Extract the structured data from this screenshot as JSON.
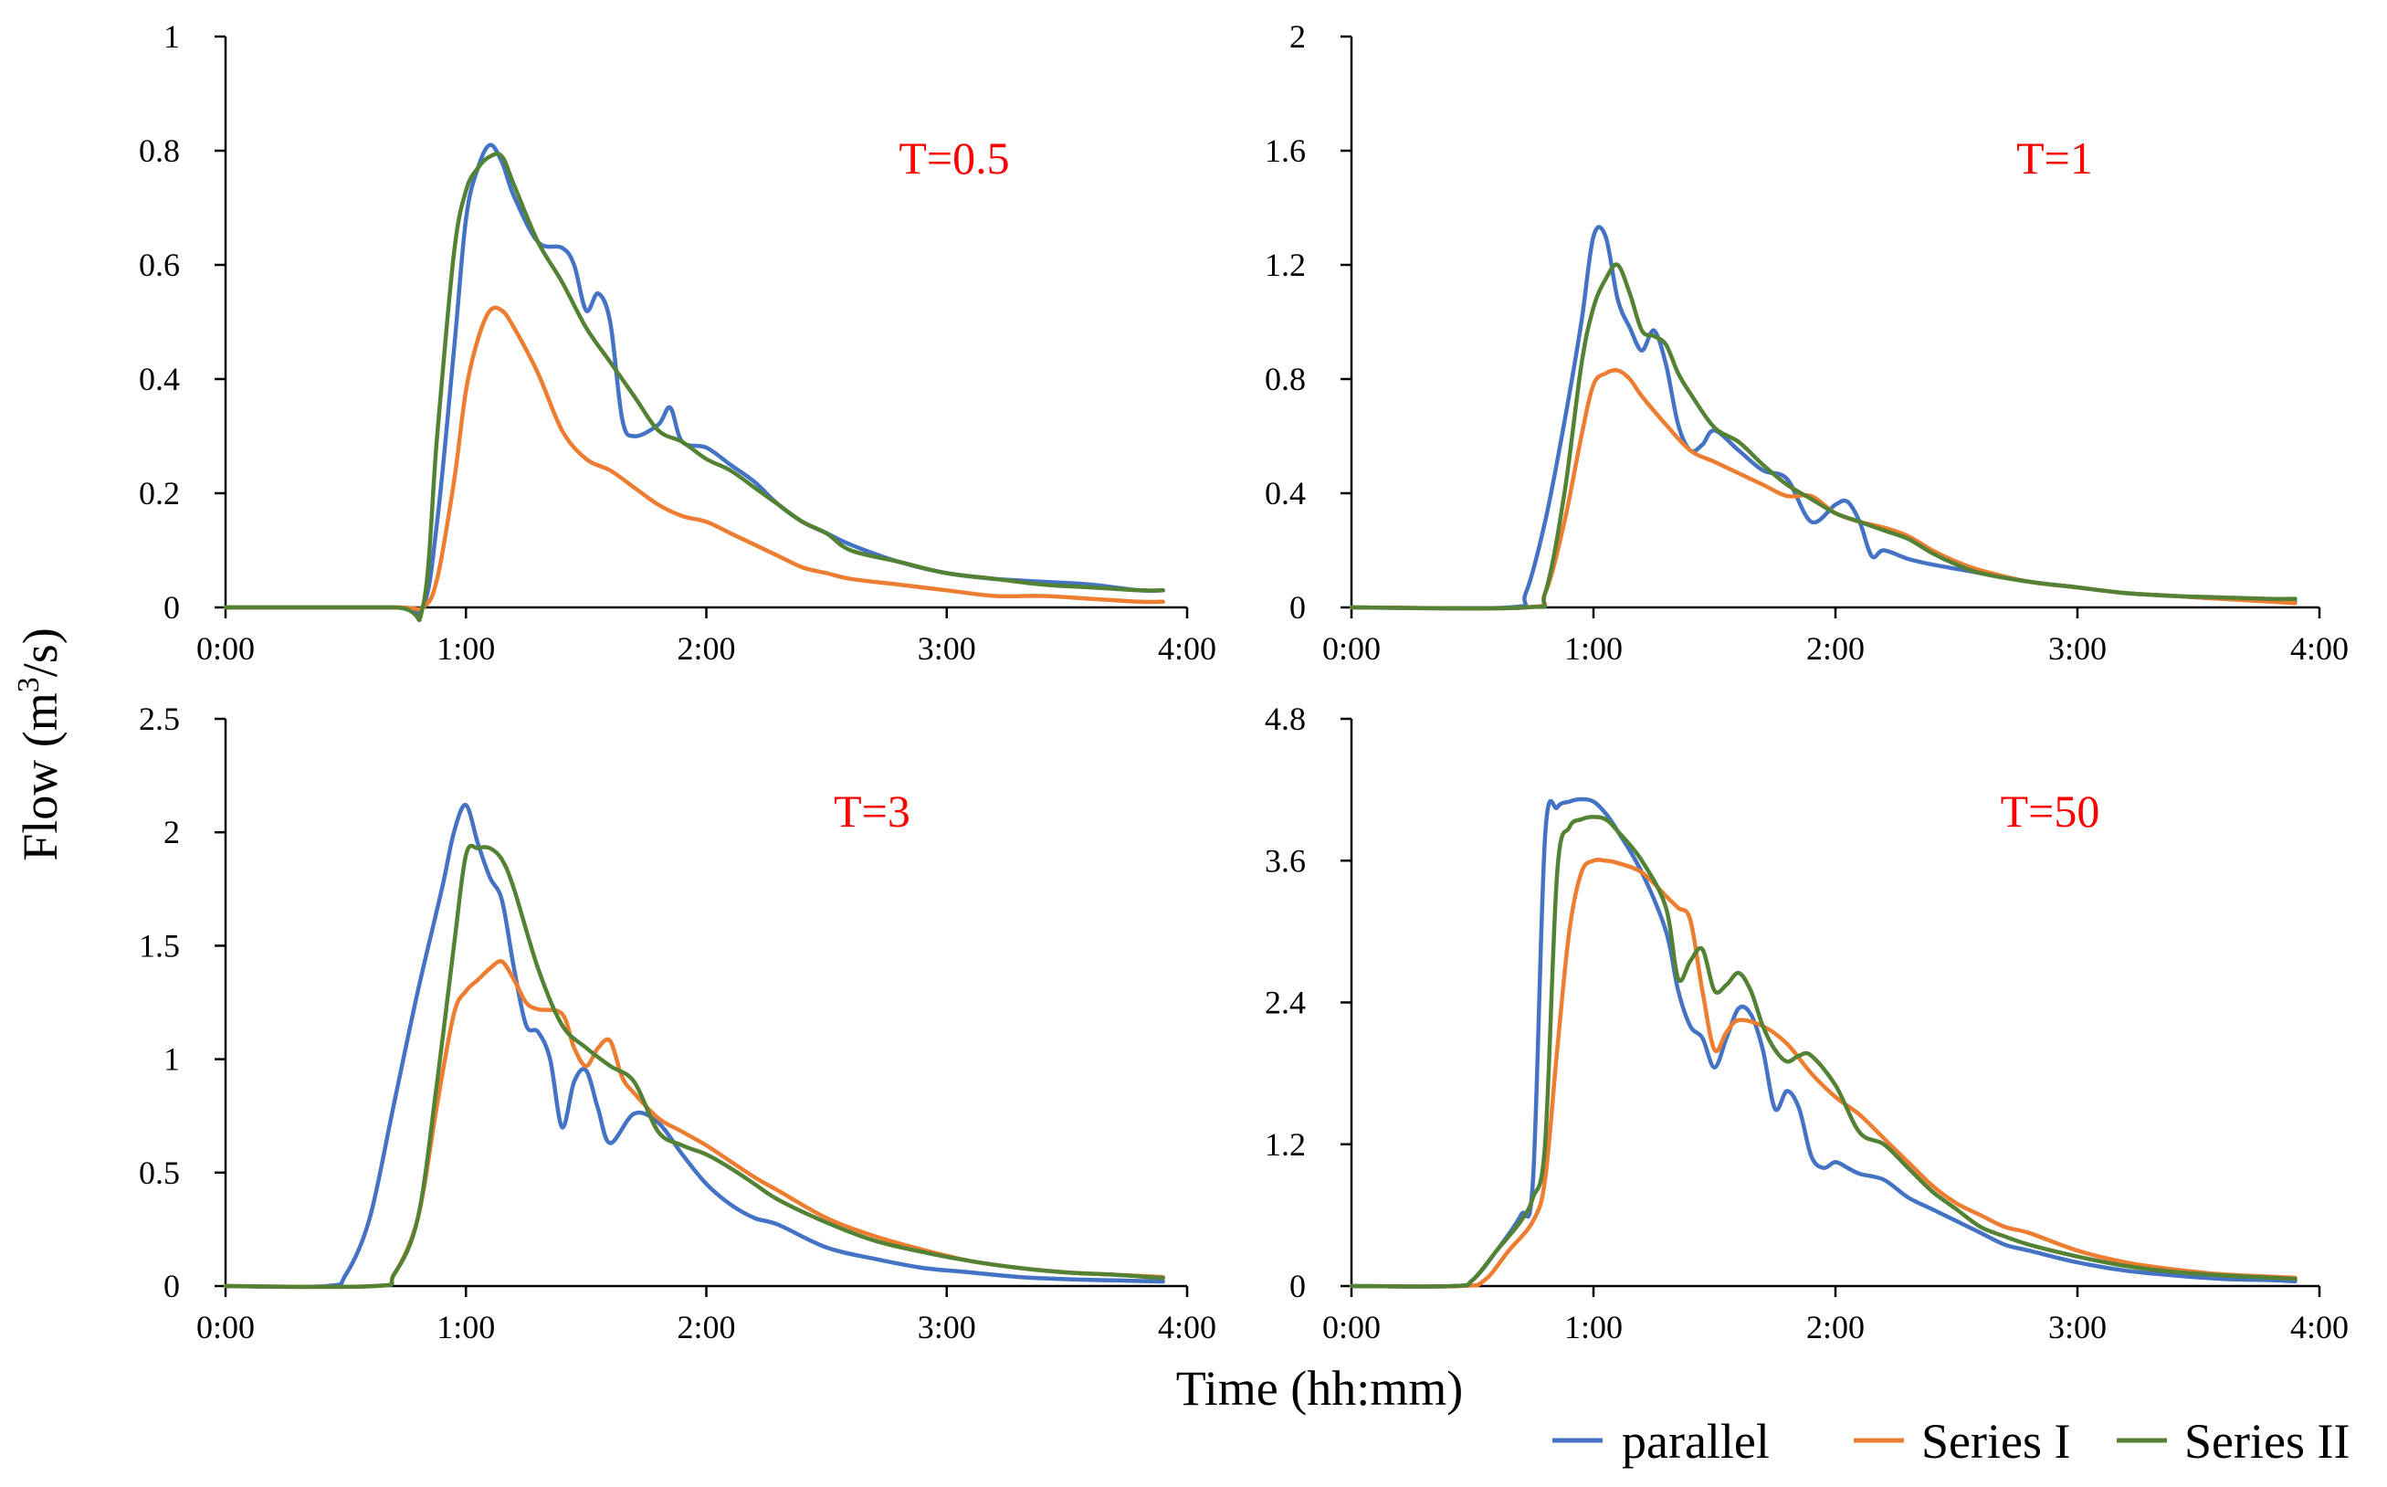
{
  "figure": {
    "ylabel_main": "Flow (m",
    "ylabel_sup": "3",
    "ylabel_tail": "/s)",
    "xlabel": "Time (hh:mm)"
  },
  "legend": [
    {
      "name": "parallel",
      "color": "#4472C4"
    },
    {
      "name": "Series I",
      "color": "#ED7D31"
    },
    {
      "name": "Series II",
      "color": "#548235"
    }
  ],
  "label_color": "#FF0000",
  "chart_data": [
    {
      "type": "line",
      "panel_label": "T=0.5",
      "x_ticks": [
        "0:00",
        "1:00",
        "2:00",
        "3:00",
        "4:00"
      ],
      "xlim": [
        0,
        4
      ],
      "ylim": [
        0,
        1
      ],
      "y_ticks": [
        "0",
        "0.2",
        "0.4",
        "0.6",
        "0.8",
        "1"
      ],
      "series": [
        {
          "name": "parallel",
          "x": [
            0,
            0.7,
            0.82,
            0.88,
            0.95,
            1.0,
            1.05,
            1.1,
            1.15,
            1.2,
            1.3,
            1.4,
            1.45,
            1.5,
            1.55,
            1.6,
            1.65,
            1.7,
            1.8,
            1.85,
            1.9,
            2.0,
            2.1,
            2.2,
            2.3,
            2.4,
            2.5,
            2.6,
            2.8,
            3.0,
            3.2,
            3.4,
            3.6,
            3.8,
            3.9
          ],
          "y": [
            0,
            0,
            0.0,
            0.15,
            0.45,
            0.68,
            0.77,
            0.81,
            0.78,
            0.72,
            0.64,
            0.63,
            0.6,
            0.52,
            0.55,
            0.5,
            0.33,
            0.3,
            0.32,
            0.35,
            0.29,
            0.28,
            0.25,
            0.22,
            0.18,
            0.15,
            0.13,
            0.11,
            0.08,
            0.06,
            0.05,
            0.045,
            0.04,
            0.03,
            0.03
          ]
        },
        {
          "name": "Series I",
          "x": [
            0,
            0.7,
            0.82,
            0.88,
            0.95,
            1.0,
            1.05,
            1.1,
            1.15,
            1.2,
            1.3,
            1.4,
            1.5,
            1.6,
            1.7,
            1.8,
            1.9,
            2.0,
            2.1,
            2.2,
            2.3,
            2.4,
            2.5,
            2.6,
            2.8,
            3.0,
            3.2,
            3.4,
            3.6,
            3.8,
            3.9
          ],
          "y": [
            0,
            0,
            0.0,
            0.05,
            0.22,
            0.38,
            0.47,
            0.52,
            0.52,
            0.49,
            0.41,
            0.31,
            0.26,
            0.24,
            0.21,
            0.18,
            0.16,
            0.15,
            0.13,
            0.11,
            0.09,
            0.07,
            0.06,
            0.05,
            0.04,
            0.03,
            0.02,
            0.02,
            0.015,
            0.01,
            0.01
          ]
        },
        {
          "name": "Series II",
          "x": [
            0,
            0.7,
            0.82,
            0.88,
            0.95,
            1.0,
            1.05,
            1.1,
            1.15,
            1.2,
            1.3,
            1.4,
            1.5,
            1.6,
            1.7,
            1.8,
            1.9,
            2.0,
            2.1,
            2.2,
            2.3,
            2.4,
            2.5,
            2.6,
            2.8,
            3.0,
            3.2,
            3.4,
            3.6,
            3.8,
            3.9
          ],
          "y": [
            0,
            0,
            0.0,
            0.3,
            0.62,
            0.73,
            0.77,
            0.79,
            0.79,
            0.74,
            0.64,
            0.57,
            0.49,
            0.43,
            0.37,
            0.31,
            0.29,
            0.26,
            0.24,
            0.21,
            0.18,
            0.15,
            0.13,
            0.1,
            0.08,
            0.06,
            0.05,
            0.04,
            0.035,
            0.03,
            0.03
          ]
        }
      ]
    },
    {
      "type": "line",
      "panel_label": "T=1",
      "x_ticks": [
        "0:00",
        "1:00",
        "2:00",
        "3:00",
        "4:00"
      ],
      "xlim": [
        0,
        4
      ],
      "ylim": [
        0,
        2
      ],
      "y_ticks": [
        "0",
        "0.4",
        "0.8",
        "1.2",
        "1.6",
        "2"
      ],
      "series": [
        {
          "name": "parallel",
          "x": [
            0,
            0.65,
            0.72,
            0.8,
            0.88,
            0.95,
            1.0,
            1.05,
            1.1,
            1.15,
            1.2,
            1.25,
            1.3,
            1.35,
            1.4,
            1.45,
            1.5,
            1.6,
            1.7,
            1.8,
            1.9,
            2.0,
            2.05,
            2.1,
            2.15,
            2.2,
            2.3,
            2.4,
            2.6,
            2.8,
            3.0,
            3.2,
            3.4,
            3.6,
            3.8,
            3.9
          ],
          "y": [
            0,
            0,
            0.05,
            0.3,
            0.65,
            1.0,
            1.3,
            1.3,
            1.08,
            0.98,
            0.9,
            0.97,
            0.85,
            0.64,
            0.55,
            0.57,
            0.62,
            0.55,
            0.48,
            0.45,
            0.3,
            0.36,
            0.37,
            0.3,
            0.18,
            0.2,
            0.17,
            0.15,
            0.12,
            0.09,
            0.07,
            0.05,
            0.04,
            0.03,
            0.025,
            0.02
          ]
        },
        {
          "name": "Series I",
          "x": [
            0,
            0.72,
            0.8,
            0.88,
            0.95,
            1.0,
            1.05,
            1.1,
            1.15,
            1.2,
            1.3,
            1.4,
            1.5,
            1.6,
            1.7,
            1.8,
            1.9,
            2.0,
            2.1,
            2.2,
            2.3,
            2.4,
            2.5,
            2.6,
            2.8,
            3.0,
            3.2,
            3.4,
            3.6,
            3.8,
            3.9
          ],
          "y": [
            0,
            0,
            0.05,
            0.3,
            0.6,
            0.78,
            0.82,
            0.83,
            0.8,
            0.74,
            0.64,
            0.55,
            0.51,
            0.47,
            0.43,
            0.39,
            0.39,
            0.33,
            0.3,
            0.28,
            0.25,
            0.2,
            0.16,
            0.13,
            0.09,
            0.07,
            0.05,
            0.04,
            0.03,
            0.02,
            0.015
          ]
        },
        {
          "name": "Series II",
          "x": [
            0,
            0.72,
            0.8,
            0.88,
            0.95,
            1.0,
            1.05,
            1.1,
            1.15,
            1.2,
            1.25,
            1.3,
            1.35,
            1.4,
            1.5,
            1.6,
            1.7,
            1.8,
            1.9,
            2.0,
            2.1,
            2.2,
            2.3,
            2.4,
            2.5,
            2.6,
            2.8,
            3.0,
            3.2,
            3.4,
            3.6,
            3.8,
            3.9
          ],
          "y": [
            0,
            0,
            0.05,
            0.4,
            0.85,
            1.05,
            1.15,
            1.2,
            1.1,
            0.97,
            0.95,
            0.92,
            0.82,
            0.75,
            0.63,
            0.58,
            0.5,
            0.43,
            0.38,
            0.33,
            0.3,
            0.27,
            0.24,
            0.19,
            0.15,
            0.12,
            0.09,
            0.07,
            0.05,
            0.04,
            0.035,
            0.03,
            0.03
          ]
        }
      ]
    },
    {
      "type": "line",
      "panel_label": "T=3",
      "x_ticks": [
        "0:00",
        "1:00",
        "2:00",
        "3:00",
        "4:00"
      ],
      "xlim": [
        0,
        4
      ],
      "ylim": [
        0,
        2.5
      ],
      "y_ticks": [
        "0",
        "0.5",
        "1",
        "1.5",
        "2",
        "2.5"
      ],
      "series": [
        {
          "name": "parallel",
          "x": [
            0,
            0.42,
            0.5,
            0.6,
            0.7,
            0.8,
            0.9,
            0.95,
            1.0,
            1.05,
            1.1,
            1.15,
            1.2,
            1.25,
            1.3,
            1.35,
            1.4,
            1.45,
            1.5,
            1.55,
            1.6,
            1.7,
            1.8,
            1.9,
            2.0,
            2.1,
            2.2,
            2.3,
            2.5,
            2.7,
            2.9,
            3.1,
            3.3,
            3.5,
            3.7,
            3.9
          ],
          "y": [
            0,
            0,
            0.05,
            0.3,
            0.8,
            1.3,
            1.75,
            2.0,
            2.12,
            1.95,
            1.8,
            1.7,
            1.4,
            1.15,
            1.12,
            1.0,
            0.7,
            0.9,
            0.95,
            0.78,
            0.63,
            0.76,
            0.72,
            0.58,
            0.45,
            0.36,
            0.3,
            0.27,
            0.17,
            0.12,
            0.08,
            0.06,
            0.04,
            0.03,
            0.025,
            0.02
          ]
        },
        {
          "name": "Series I",
          "x": [
            0,
            0.62,
            0.7,
            0.8,
            0.88,
            0.95,
            1.0,
            1.05,
            1.1,
            1.15,
            1.2,
            1.25,
            1.3,
            1.4,
            1.45,
            1.5,
            1.55,
            1.6,
            1.65,
            1.7,
            1.8,
            1.9,
            2.0,
            2.1,
            2.2,
            2.3,
            2.5,
            2.7,
            2.9,
            3.1,
            3.3,
            3.5,
            3.7,
            3.9
          ],
          "y": [
            0,
            0,
            0.05,
            0.3,
            0.8,
            1.2,
            1.3,
            1.35,
            1.4,
            1.43,
            1.35,
            1.25,
            1.22,
            1.2,
            1.05,
            0.97,
            1.05,
            1.08,
            0.92,
            0.85,
            0.74,
            0.68,
            0.62,
            0.55,
            0.48,
            0.42,
            0.3,
            0.22,
            0.16,
            0.11,
            0.08,
            0.06,
            0.05,
            0.04
          ]
        },
        {
          "name": "Series II",
          "x": [
            0,
            0.62,
            0.7,
            0.8,
            0.88,
            0.95,
            1.0,
            1.05,
            1.1,
            1.15,
            1.2,
            1.3,
            1.4,
            1.5,
            1.6,
            1.7,
            1.8,
            1.9,
            2.0,
            2.1,
            2.2,
            2.3,
            2.5,
            2.7,
            2.9,
            3.1,
            3.3,
            3.5,
            3.7,
            3.9
          ],
          "y": [
            0,
            0,
            0.05,
            0.3,
            0.9,
            1.5,
            1.9,
            1.93,
            1.93,
            1.88,
            1.75,
            1.4,
            1.15,
            1.05,
            0.97,
            0.9,
            0.68,
            0.62,
            0.58,
            0.52,
            0.45,
            0.38,
            0.28,
            0.2,
            0.15,
            0.11,
            0.08,
            0.06,
            0.05,
            0.035
          ]
        }
      ]
    },
    {
      "type": "line",
      "panel_label": "T=50",
      "x_ticks": [
        "0:00",
        "1:00",
        "2:00",
        "3:00",
        "4:00"
      ],
      "xlim": [
        0,
        4
      ],
      "ylim": [
        0,
        4.8
      ],
      "y_ticks": [
        "0",
        "1.2",
        "2.4",
        "3.6",
        "4.8"
      ],
      "series": [
        {
          "name": "parallel",
          "x": [
            0,
            0.42,
            0.5,
            0.6,
            0.7,
            0.75,
            0.8,
            0.85,
            0.9,
            0.95,
            1.0,
            1.05,
            1.1,
            1.2,
            1.3,
            1.35,
            1.4,
            1.45,
            1.5,
            1.55,
            1.6,
            1.65,
            1.7,
            1.75,
            1.8,
            1.85,
            1.9,
            1.95,
            2.0,
            2.05,
            2.1,
            2.2,
            2.3,
            2.4,
            2.5,
            2.6,
            2.7,
            2.8,
            3.0,
            3.2,
            3.4,
            3.6,
            3.8,
            3.9
          ],
          "y": [
            0,
            0,
            0.05,
            0.3,
            0.6,
            0.9,
            3.8,
            4.05,
            4.1,
            4.12,
            4.1,
            4.0,
            3.85,
            3.5,
            3.0,
            2.5,
            2.2,
            2.1,
            1.85,
            2.1,
            2.35,
            2.3,
            2.0,
            1.5,
            1.65,
            1.5,
            1.1,
            1.0,
            1.05,
            1.0,
            0.95,
            0.9,
            0.75,
            0.65,
            0.55,
            0.45,
            0.35,
            0.3,
            0.2,
            0.13,
            0.09,
            0.06,
            0.05,
            0.04
          ]
        },
        {
          "name": "Series I",
          "x": [
            0,
            0.45,
            0.55,
            0.65,
            0.75,
            0.8,
            0.85,
            0.9,
            0.95,
            1.0,
            1.05,
            1.1,
            1.2,
            1.3,
            1.35,
            1.4,
            1.45,
            1.5,
            1.55,
            1.6,
            1.7,
            1.8,
            1.9,
            2.0,
            2.1,
            2.2,
            2.3,
            2.4,
            2.5,
            2.6,
            2.7,
            2.8,
            3.0,
            3.2,
            3.4,
            3.6,
            3.8,
            3.9
          ],
          "y": [
            0,
            0,
            0.05,
            0.3,
            0.55,
            0.9,
            2.0,
            3.0,
            3.5,
            3.6,
            3.6,
            3.58,
            3.5,
            3.3,
            3.2,
            3.1,
            2.5,
            2.0,
            2.15,
            2.25,
            2.2,
            2.05,
            1.8,
            1.6,
            1.45,
            1.25,
            1.05,
            0.85,
            0.7,
            0.6,
            0.5,
            0.45,
            0.3,
            0.2,
            0.14,
            0.1,
            0.08,
            0.07
          ]
        },
        {
          "name": "Series II",
          "x": [
            0,
            0.42,
            0.5,
            0.6,
            0.7,
            0.75,
            0.8,
            0.85,
            0.9,
            0.95,
            1.0,
            1.05,
            1.1,
            1.2,
            1.3,
            1.35,
            1.4,
            1.45,
            1.5,
            1.55,
            1.6,
            1.65,
            1.7,
            1.75,
            1.8,
            1.85,
            1.9,
            2.0,
            2.1,
            2.2,
            2.3,
            2.4,
            2.5,
            2.6,
            2.7,
            2.8,
            3.0,
            3.2,
            3.4,
            3.6,
            3.8,
            3.9
          ],
          "y": [
            0,
            0,
            0.05,
            0.3,
            0.55,
            0.75,
            1.2,
            3.5,
            3.88,
            3.95,
            3.97,
            3.95,
            3.85,
            3.6,
            3.2,
            2.6,
            2.75,
            2.85,
            2.5,
            2.55,
            2.65,
            2.5,
            2.2,
            2.0,
            1.9,
            1.95,
            1.95,
            1.7,
            1.3,
            1.2,
            1.0,
            0.8,
            0.65,
            0.5,
            0.42,
            0.35,
            0.25,
            0.17,
            0.12,
            0.09,
            0.07,
            0.06
          ]
        }
      ]
    }
  ]
}
